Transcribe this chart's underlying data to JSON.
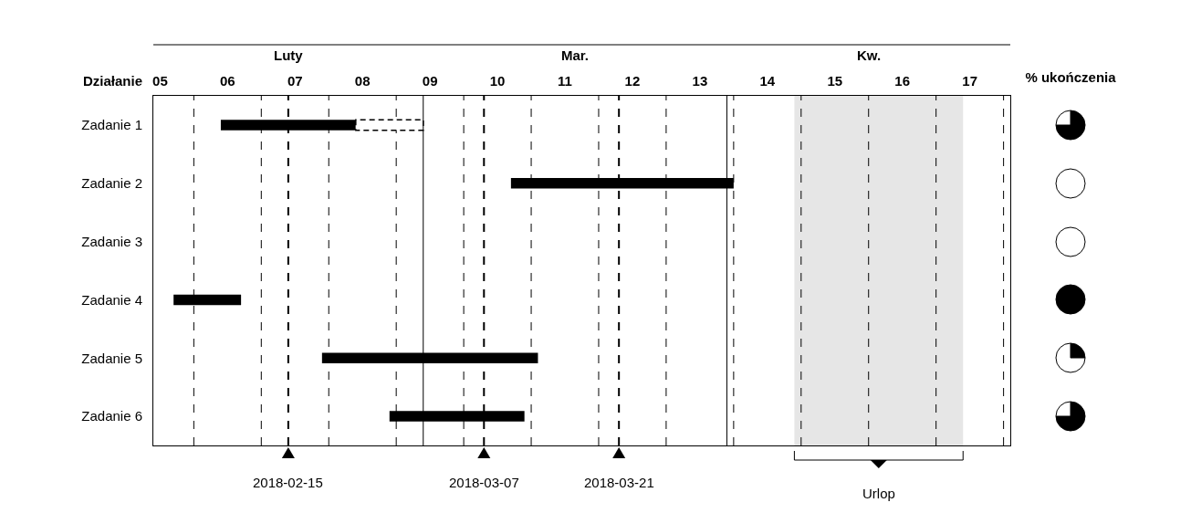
{
  "chart_data": [
    {
      "type": "bar",
      "orientation": "horizontal",
      "ylabel": "Działanie",
      "grid": true,
      "categories": [
        "Zadanie 1",
        "Zadanie 2",
        "Zadanie 3",
        "Zadanie 4",
        "Zadanie 5",
        "Zadanie 6"
      ],
      "series": [
        {
          "color": "#000000",
          "base": [
            5.9,
            10.2,
            null,
            5.2,
            7.4,
            8.4
          ],
          "values": [
            2.0,
            3.3,
            null,
            1.0,
            3.2,
            2.0
          ]
        },
        {
          "color": "#ffffff",
          "line_style": "dashed",
          "base": [
            7.9,
            null,
            null,
            null,
            null,
            null
          ],
          "values": [
            1.0,
            null,
            null,
            null,
            null,
            null
          ]
        }
      ],
      "xlim": [
        4.9,
        17.6
      ],
      "xticks": [
        {
          "value": 5,
          "label": "05"
        },
        {
          "value": 6,
          "label": "06"
        },
        {
          "value": 7,
          "label": "07"
        },
        {
          "value": 8,
          "label": "08"
        },
        {
          "value": 9,
          "label": "09"
        },
        {
          "value": 10,
          "label": "10"
        },
        {
          "value": 11,
          "label": "11"
        },
        {
          "value": 12,
          "label": "12"
        },
        {
          "value": 13,
          "label": "13"
        },
        {
          "value": 14,
          "label": "14"
        },
        {
          "value": 15,
          "label": "15"
        },
        {
          "value": 16,
          "label": "16"
        },
        {
          "value": 17,
          "label": "17"
        },
        {
          "value": 5.5,
          "label": null
        },
        {
          "value": 6.5,
          "label": null
        },
        {
          "value": 7.5,
          "label": null
        },
        {
          "value": 8.5,
          "label": null
        },
        {
          "value": 9.5,
          "label": null
        },
        {
          "value": 10.5,
          "label": null
        },
        {
          "value": 11.5,
          "label": null
        },
        {
          "value": 12.5,
          "label": null
        },
        {
          "value": 13.5,
          "label": null
        },
        {
          "value": 14.5,
          "label": null
        },
        {
          "value": 15.5,
          "label": null
        },
        {
          "value": 16.5,
          "label": null
        },
        {
          "value": 17.5,
          "label": null
        }
      ],
      "annotations": [
        "Luty",
        "Mar.",
        "Kw.",
        "2018-02-15",
        "2018-03-07",
        "2018-03-21"
      ],
      "ref_lines": [
        {
          "axis": "x",
          "value": 8.9,
          "color": "#000000",
          "line_style": "solid"
        },
        {
          "axis": "x",
          "value": 13.4,
          "color": "#000000",
          "line_style": "solid"
        },
        {
          "axis": "x",
          "value": 6.9,
          "color": "#000000",
          "line_style": "dashed"
        },
        {
          "axis": "x",
          "value": 9.8,
          "color": "#000000",
          "line_style": "dashed"
        },
        {
          "axis": "x",
          "value": 11.8,
          "color": "#000000",
          "line_style": "dashed"
        }
      ],
      "bands": [
        {
          "axis": "x",
          "from": 14.4,
          "to": 16.9,
          "label": "Urlop",
          "color": "#e6e6e6"
        }
      ]
    },
    {
      "type": "pie",
      "title": "% ukończenia",
      "categories": [
        null,
        null
      ],
      "values": [
        75,
        25
      ],
      "colors": [
        "#000000",
        "#ffffff"
      ]
    },
    {
      "type": "pie",
      "categories": [
        null,
        null
      ],
      "values": [
        0,
        100
      ],
      "colors": [
        "#000000",
        "#ffffff"
      ]
    },
    {
      "type": "pie",
      "categories": [
        null,
        null
      ],
      "values": [
        0,
        100
      ],
      "colors": [
        "#000000",
        "#ffffff"
      ]
    },
    {
      "type": "pie",
      "categories": [
        null,
        null
      ],
      "values": [
        100,
        0
      ],
      "colors": [
        "#000000",
        "#ffffff"
      ]
    },
    {
      "type": "pie",
      "categories": [
        null,
        null
      ],
      "values": [
        25,
        75
      ],
      "colors": [
        "#000000",
        "#ffffff"
      ]
    },
    {
      "type": "pie",
      "categories": [
        null,
        null
      ],
      "values": [
        75,
        25
      ],
      "colors": [
        "#000000",
        "#ffffff"
      ]
    }
  ]
}
